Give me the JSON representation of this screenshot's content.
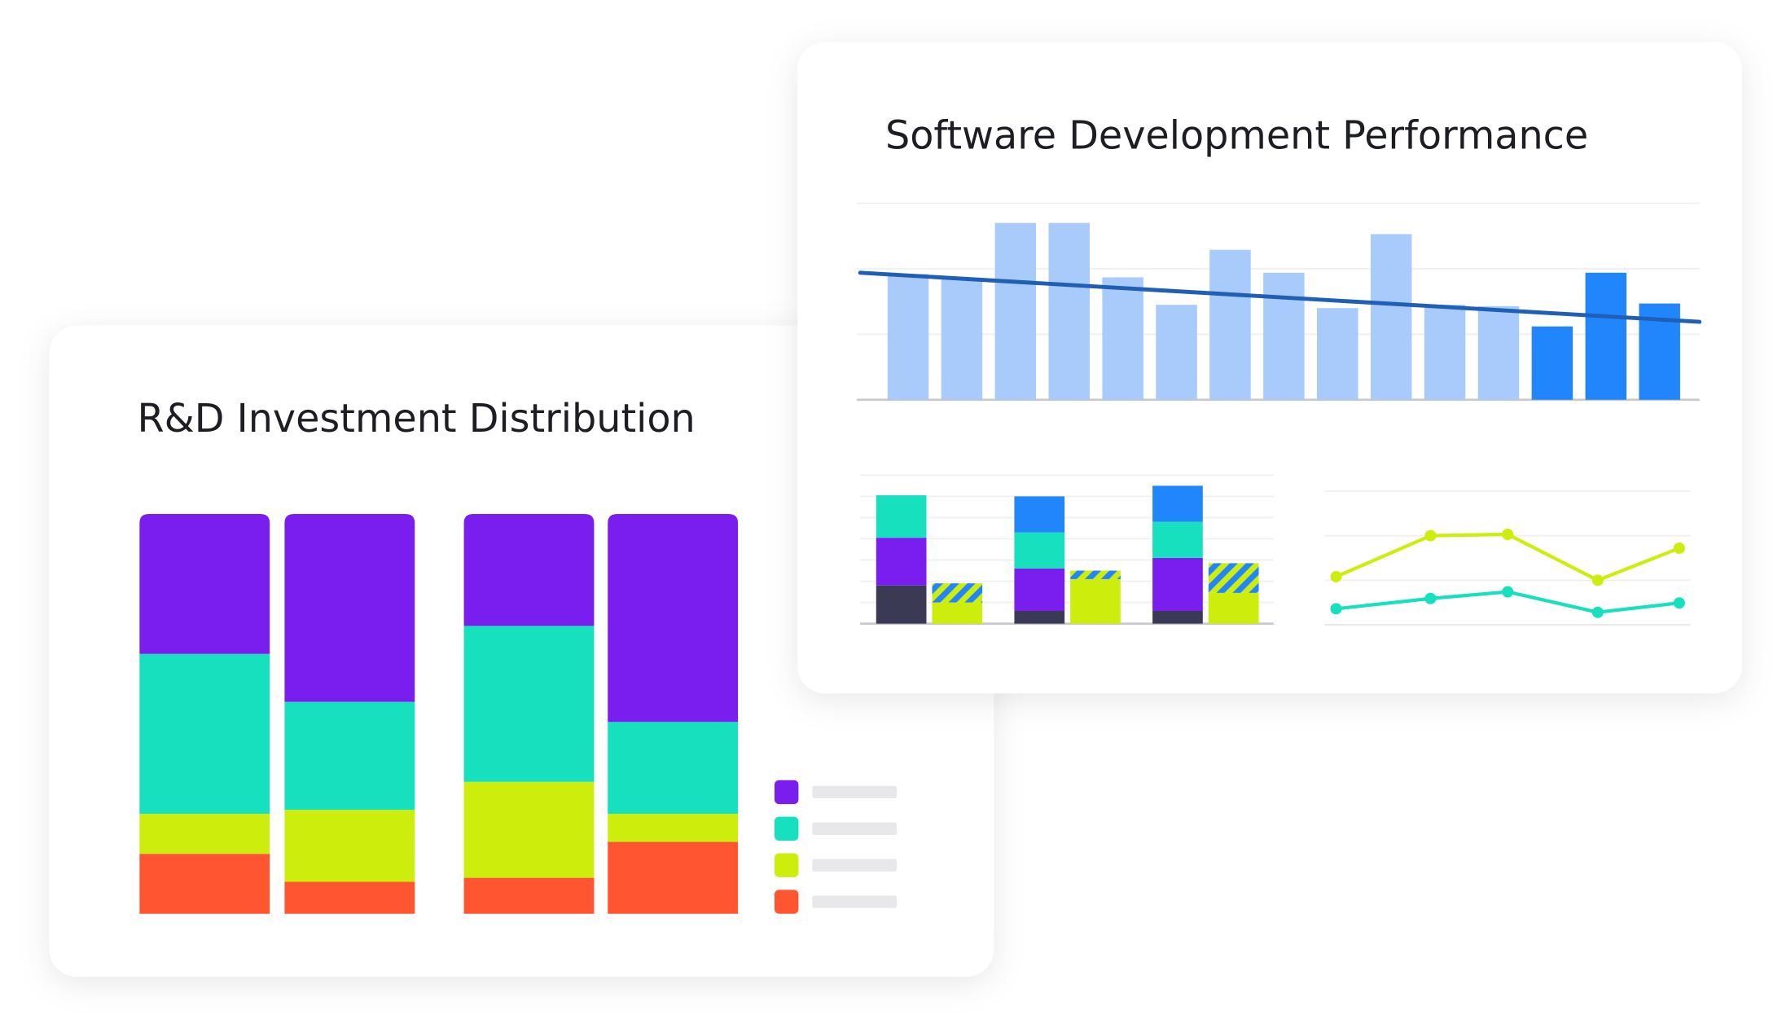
{
  "chart_data": [
    {
      "type": "stacked-bar",
      "title": "R&D Investment Distribution",
      "categories": [
        null,
        null,
        null,
        null
      ],
      "ylim": [
        0,
        100
      ],
      "series": [
        {
          "color": "#ff5530",
          "values": [
            15,
            8,
            9,
            18
          ]
        },
        {
          "color": "#cdee0c",
          "values": [
            10,
            18,
            24,
            7
          ]
        },
        {
          "color": "#16e0bd",
          "values": [
            40,
            27,
            39,
            23
          ]
        },
        {
          "color": "#7a1ef0",
          "values": [
            35,
            47,
            28,
            52
          ]
        }
      ],
      "legend": "right"
    },
    {
      "type": "bar",
      "title": "Software Development Performance",
      "categories": [
        null,
        null,
        null,
        null,
        null,
        null,
        null,
        null,
        null,
        null,
        null,
        null,
        null,
        null,
        null
      ],
      "values": [
        1.92,
        1.85,
        2.7,
        2.7,
        1.87,
        1.45,
        2.29,
        1.94,
        1.4,
        2.53,
        1.45,
        1.43,
        1.12,
        1.94,
        1.47
      ],
      "colors": [
        "#a8cbfb",
        "#a8cbfb",
        "#a8cbfb",
        "#a8cbfb",
        "#a8cbfb",
        "#a8cbfb",
        "#a8cbfb",
        "#a8cbfb",
        "#a8cbfb",
        "#a8cbfb",
        "#a8cbfb",
        "#a8cbfb",
        "#2186fb",
        "#2186fb",
        "#2186fb"
      ],
      "trend": {
        "color": "#1f5fb8",
        "values": [
          1.94,
          1.19
        ]
      },
      "ylim": [
        0,
        3
      ],
      "yticks": [
        0,
        1,
        2,
        3
      ],
      "grid": true
    },
    {
      "type": "grouped-stacked-bar",
      "categories": [
        null,
        null,
        null
      ],
      "ylim": [
        0,
        7
      ],
      "yticks": [
        0,
        1,
        2,
        3,
        4,
        5,
        6,
        7
      ],
      "grid": true,
      "series": [
        {
          "stack": "a",
          "color": "#3b3a55",
          "values": [
            1.8,
            0.6,
            0.6
          ]
        },
        {
          "stack": "a",
          "color": "#7a1ef0",
          "values": [
            2.25,
            2.0,
            2.5
          ]
        },
        {
          "stack": "a",
          "color": "#16e0bd",
          "values": [
            2.0,
            1.7,
            1.7
          ]
        },
        {
          "stack": "a",
          "color": "#2186fb",
          "values": [
            0,
            1.7,
            1.7
          ]
        },
        {
          "stack": "b",
          "color": "#cdee0c",
          "values": [
            1.0,
            2.1,
            1.45
          ]
        },
        {
          "stack": "b",
          "color": "#2186fb",
          "hatch": true,
          "hatch_color": "#cdee0c",
          "values": [
            0.9,
            0.4,
            1.4
          ]
        }
      ]
    },
    {
      "type": "line",
      "x": [
        0,
        1.1,
        2,
        3.05,
        4
      ],
      "xlim": [
        -0.13,
        4.13
      ],
      "ylim": [
        0,
        3
      ],
      "yticks": [
        0,
        1,
        2,
        3
      ],
      "grid": true,
      "series": [
        {
          "color": "#cdee0c",
          "values": [
            1.08,
            2.0,
            2.03,
            1.0,
            1.72
          ]
        },
        {
          "color": "#16e0bd",
          "values": [
            0.36,
            0.59,
            0.74,
            0.28,
            0.49
          ]
        }
      ]
    }
  ]
}
